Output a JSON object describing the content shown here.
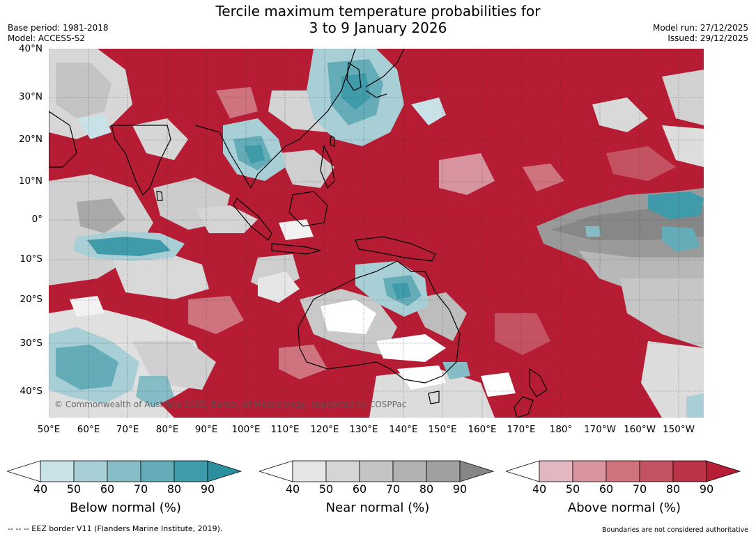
{
  "title": {
    "line1": "Tercile maximum temperature probabilities for",
    "line2": "3 to 9 January 2026"
  },
  "meta": {
    "base_period": "Base period: 1981-2018",
    "model": "Model: ACCESS-S2",
    "model_run": "Model run: 27/12/2025",
    "issued": "Issued: 29/12/2025"
  },
  "map": {
    "lat_labels": [
      "40°N",
      "30°N",
      "20°N",
      "10°N",
      "0°",
      "10°S",
      "20°S",
      "30°S",
      "40°S"
    ],
    "lon_labels": [
      "50°E",
      "60°E",
      "70°E",
      "80°E",
      "90°E",
      "100°E",
      "110°E",
      "120°E",
      "130°E",
      "140°E",
      "150°E",
      "160°E",
      "170°E",
      "180°",
      "170°W",
      "160°W",
      "150°W"
    ],
    "credit": "© Commonwealth of Australia 2025, Bureau of Meteorology, supported by COSPPac"
  },
  "colorbars": [
    {
      "label": "Below normal (%)",
      "ticks": [
        "40",
        "50",
        "60",
        "70",
        "80",
        "90"
      ],
      "colors": [
        "#c9e2e8",
        "#a8cfd6",
        "#86bcc6",
        "#64adb8",
        "#3f9aaa"
      ],
      "end_color": "#2a8f9e"
    },
    {
      "label": "Near normal (%)",
      "ticks": [
        "40",
        "50",
        "60",
        "70",
        "80",
        "90"
      ],
      "colors": [
        "#e6e6e6",
        "#d5d5d5",
        "#c4c4c4",
        "#b1b1b1",
        "#a0a0a0"
      ],
      "end_color": "#868686"
    },
    {
      "label": "Above normal (%)",
      "ticks": [
        "40",
        "50",
        "60",
        "70",
        "80",
        "90"
      ],
      "colors": [
        "#e2b7bf",
        "#d8959f",
        "#cf737f",
        "#c55262",
        "#bb3348"
      ],
      "end_color": "#b51e36"
    }
  ],
  "footer": {
    "left": "--  --  -- EEZ border V11 (Flanders Marine Institute, 2019).",
    "right": "Boundaries are not considered authoritative"
  }
}
